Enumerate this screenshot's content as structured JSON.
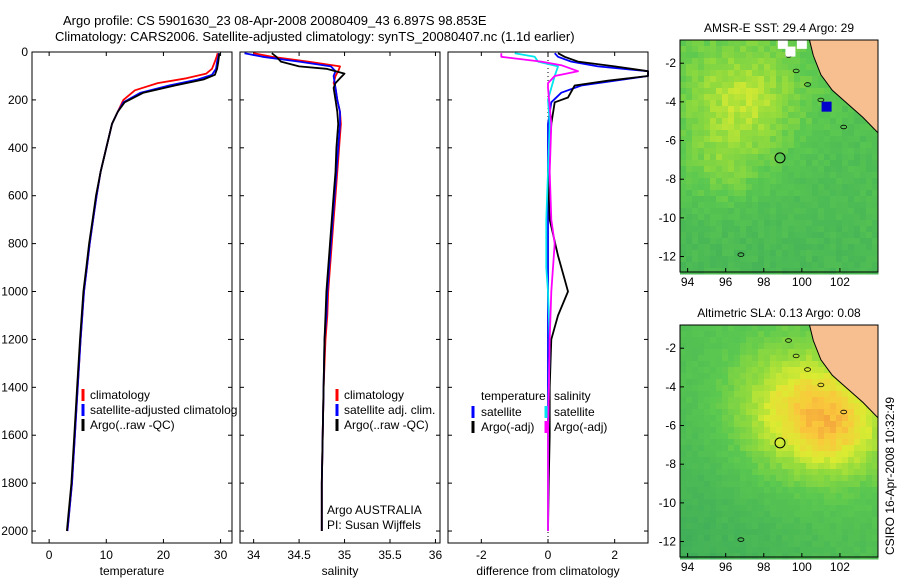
{
  "title": {
    "line1": "Argo profile: CS 5901630_23 08-Apr-2008 20080409_43 6.897S 98.853E",
    "line2": "Climatology: CARS2006. Satellite-adjusted climatology: synTS_20080407.nc (1.1d earlier)"
  },
  "colors": {
    "clim": "#ff0000",
    "sat": "#0000ff",
    "argo": "#000000",
    "cyan": "#00e5ee",
    "magenta": "#ff00ff",
    "land": "#f7bf8f"
  },
  "footer_stamp": "CSIRO 16-Apr-2008 10:32:49",
  "chart_data": [
    {
      "type": "line",
      "xlabel": "temperature",
      "ylabel": "",
      "xlim": [
        -3,
        32
      ],
      "ylim": [
        2050,
        0
      ],
      "y_reversed": true,
      "xticks": [
        0,
        10,
        20,
        30
      ],
      "yticks": [
        0,
        200,
        400,
        600,
        800,
        1000,
        1200,
        1400,
        1600,
        1800,
        2000
      ],
      "legend": [
        "climatology",
        "satellite-adjusted climatolog",
        "Argo(..raw -QC)"
      ],
      "legend_position": "lower-right",
      "series": [
        {
          "name": "climatology",
          "color": "clim",
          "points": [
            [
              29.5,
              5
            ],
            [
              29.3,
              20
            ],
            [
              29,
              40
            ],
            [
              28.5,
              70
            ],
            [
              27.5,
              90
            ],
            [
              24,
              110
            ],
            [
              19,
              130
            ],
            [
              15,
              160
            ],
            [
              13,
              200
            ],
            [
              12,
              250
            ],
            [
              11,
              300
            ],
            [
              10,
              400
            ],
            [
              9,
              500
            ],
            [
              8.3,
              600
            ],
            [
              7.7,
              700
            ],
            [
              7.1,
              800
            ],
            [
              6.6,
              900
            ],
            [
              6.1,
              1000
            ],
            [
              5.8,
              1100
            ],
            [
              5.5,
              1200
            ],
            [
              5,
              1400
            ],
            [
              4.5,
              1600
            ],
            [
              4,
              1800
            ],
            [
              3.4,
              1950
            ],
            [
              3.2,
              2000
            ]
          ]
        },
        {
          "name": "satellite-adjusted climatolog",
          "color": "sat",
          "points": [
            [
              29.7,
              5
            ],
            [
              29.6,
              20
            ],
            [
              29.4,
              40
            ],
            [
              29.2,
              70
            ],
            [
              28.5,
              95
            ],
            [
              26,
              115
            ],
            [
              21,
              140
            ],
            [
              16,
              170
            ],
            [
              13,
              210
            ],
            [
              12,
              250
            ],
            [
              11,
              300
            ],
            [
              10,
              400
            ],
            [
              9,
              500
            ],
            [
              8.3,
              600
            ],
            [
              7.7,
              700
            ],
            [
              7.1,
              800
            ],
            [
              6.6,
              900
            ],
            [
              6.1,
              1000
            ],
            [
              5.8,
              1100
            ],
            [
              5.5,
              1200
            ],
            [
              5,
              1400
            ],
            [
              4.5,
              1600
            ],
            [
              4,
              1800
            ],
            [
              3.4,
              1950
            ],
            [
              3.2,
              2000
            ]
          ]
        },
        {
          "name": "Argo(..raw -QC)",
          "color": "argo",
          "points": [
            [
              29.8,
              5
            ],
            [
              29.7,
              20
            ],
            [
              29.6,
              40
            ],
            [
              29.4,
              70
            ],
            [
              29,
              95
            ],
            [
              27,
              115
            ],
            [
              22,
              140
            ],
            [
              16.5,
              170
            ],
            [
              13.2,
              210
            ],
            [
              12,
              250
            ],
            [
              11,
              300
            ],
            [
              10,
              400
            ],
            [
              9,
              500
            ],
            [
              8.2,
              600
            ],
            [
              7.6,
              700
            ],
            [
              7,
              800
            ],
            [
              6.5,
              900
            ],
            [
              6,
              1000
            ],
            [
              5.7,
              1100
            ],
            [
              5.4,
              1200
            ],
            [
              4.9,
              1400
            ],
            [
              4.4,
              1600
            ],
            [
              3.9,
              1800
            ],
            [
              3.3,
              1950
            ],
            [
              3.1,
              2000
            ]
          ]
        }
      ]
    },
    {
      "type": "line",
      "xlabel": "salinity",
      "ylabel": "",
      "xlim": [
        33.85,
        36.05
      ],
      "ylim": [
        2050,
        0
      ],
      "y_reversed": true,
      "xticks": [
        34,
        34.5,
        35,
        35.5,
        36
      ],
      "legend": [
        "climatology",
        "satellite adj. clim.",
        "Argo(..raw -QC)"
      ],
      "legend_position": "lower-right",
      "annotations": [
        "Argo AUSTRALIA",
        "PI: Susan Wijffels"
      ],
      "series": [
        {
          "name": "climatology",
          "color": "clim",
          "points": [
            [
              34.0,
              5
            ],
            [
              34.2,
              20
            ],
            [
              34.6,
              40
            ],
            [
              34.95,
              60
            ],
            [
              34.93,
              80
            ],
            [
              34.9,
              100
            ],
            [
              34.88,
              130
            ],
            [
              34.9,
              150
            ],
            [
              34.92,
              200
            ],
            [
              34.95,
              250
            ],
            [
              34.96,
              300
            ],
            [
              34.94,
              400
            ],
            [
              34.92,
              500
            ],
            [
              34.9,
              600
            ],
            [
              34.88,
              700
            ],
            [
              34.86,
              800
            ],
            [
              34.84,
              900
            ],
            [
              34.82,
              1000
            ],
            [
              34.81,
              1100
            ],
            [
              34.79,
              1200
            ],
            [
              34.77,
              1400
            ],
            [
              34.76,
              1600
            ],
            [
              34.75,
              1800
            ],
            [
              34.75,
              2000
            ]
          ]
        },
        {
          "name": "satellite adj. clim.",
          "color": "sat",
          "points": [
            [
              33.9,
              5
            ],
            [
              34.1,
              20
            ],
            [
              34.5,
              40
            ],
            [
              34.85,
              60
            ],
            [
              34.9,
              80
            ],
            [
              34.88,
              100
            ],
            [
              34.9,
              150
            ],
            [
              34.92,
              200
            ],
            [
              34.95,
              250
            ],
            [
              34.95,
              300
            ],
            [
              34.93,
              400
            ],
            [
              34.91,
              500
            ],
            [
              34.89,
              600
            ],
            [
              34.87,
              700
            ],
            [
              34.85,
              800
            ],
            [
              34.83,
              900
            ],
            [
              34.81,
              1000
            ],
            [
              34.8,
              1100
            ],
            [
              34.78,
              1200
            ],
            [
              34.77,
              1400
            ],
            [
              34.76,
              1600
            ],
            [
              34.75,
              1800
            ],
            [
              34.75,
              2000
            ]
          ]
        },
        {
          "name": "Argo(..raw -QC)",
          "color": "argo",
          "points": [
            [
              34.2,
              5
            ],
            [
              34.25,
              20
            ],
            [
              34.3,
              40
            ],
            [
              34.5,
              60
            ],
            [
              34.8,
              70
            ],
            [
              35.0,
              90
            ],
            [
              34.95,
              110
            ],
            [
              34.9,
              130
            ],
            [
              34.88,
              150
            ],
            [
              34.9,
              200
            ],
            [
              34.92,
              250
            ],
            [
              34.93,
              300
            ],
            [
              34.91,
              400
            ],
            [
              34.9,
              500
            ],
            [
              34.88,
              600
            ],
            [
              34.86,
              700
            ],
            [
              34.84,
              800
            ],
            [
              34.82,
              900
            ],
            [
              34.8,
              1000
            ],
            [
              34.79,
              1100
            ],
            [
              34.78,
              1200
            ],
            [
              34.77,
              1400
            ],
            [
              34.76,
              1600
            ],
            [
              34.75,
              1800
            ],
            [
              34.75,
              2000
            ]
          ]
        }
      ]
    },
    {
      "type": "line",
      "xlabel": "difference from climatology",
      "ylabel": "",
      "xlim": [
        -3.0,
        3.0
      ],
      "ylim": [
        2050,
        0
      ],
      "y_reversed": true,
      "xticks": [
        -2,
        0,
        2
      ],
      "legend_left_title": "temperature",
      "legend_right_title": "salinity",
      "legend": [
        "satellite",
        "Argo(-adj)",
        "satellite",
        "Argo(-adj)"
      ],
      "legend_position": "lower",
      "series": [
        {
          "name": "satellite",
          "group": "temperature",
          "color": "sat",
          "points": [
            [
              0.2,
              5
            ],
            [
              0.3,
              20
            ],
            [
              0.7,
              40
            ],
            [
              1.5,
              60
            ],
            [
              3.0,
              80
            ],
            [
              3.0,
              100
            ],
            [
              2.0,
              120
            ],
            [
              1.0,
              140
            ],
            [
              0.4,
              170
            ],
            [
              0.1,
              210
            ],
            [
              0,
              300
            ],
            [
              0,
              600
            ],
            [
              0,
              1000
            ],
            [
              0,
              1500
            ],
            [
              0,
              2000
            ]
          ]
        },
        {
          "name": "Argo(-adj)",
          "group": "temperature",
          "color": "argo",
          "points": [
            [
              0.3,
              5
            ],
            [
              0.5,
              20
            ],
            [
              0.9,
              40
            ],
            [
              2.0,
              60
            ],
            [
              3.0,
              80
            ],
            [
              3.0,
              100
            ],
            [
              1.8,
              120
            ],
            [
              0.8,
              140
            ],
            [
              0.6,
              190
            ],
            [
              0.2,
              210
            ],
            [
              0.1,
              300
            ],
            [
              0,
              500
            ],
            [
              0.05,
              700
            ],
            [
              0.3,
              850
            ],
            [
              0.5,
              950
            ],
            [
              0.6,
              1000
            ],
            [
              0.3,
              1100
            ],
            [
              0.1,
              1200
            ],
            [
              0.05,
              1400
            ],
            [
              0.05,
              1600
            ],
            [
              0.02,
              1800
            ],
            [
              0,
              2000
            ]
          ]
        },
        {
          "name": "satellite",
          "group": "salinity",
          "color": "cyan",
          "points": [
            [
              -1.0,
              5
            ],
            [
              -0.4,
              20
            ],
            [
              -0.3,
              40
            ],
            [
              0.3,
              60
            ],
            [
              0.2,
              100
            ],
            [
              0.1,
              150
            ],
            [
              0,
              200
            ],
            [
              0.05,
              300
            ],
            [
              0,
              500
            ],
            [
              -0.05,
              700
            ],
            [
              -0.05,
              900
            ],
            [
              0,
              1000
            ],
            [
              0.05,
              1200
            ],
            [
              0,
              1600
            ],
            [
              0,
              2000
            ]
          ]
        },
        {
          "name": "Argo(-adj)",
          "group": "salinity",
          "color": "magenta",
          "points": [
            [
              -1.4,
              5
            ],
            [
              -1.4,
              20
            ],
            [
              -0.2,
              40
            ],
            [
              0.4,
              55
            ],
            [
              0.9,
              80
            ],
            [
              0.2,
              100
            ],
            [
              0,
              130
            ],
            [
              0,
              150
            ],
            [
              0.1,
              300
            ],
            [
              0.05,
              500
            ],
            [
              0.1,
              700
            ],
            [
              0.2,
              800
            ],
            [
              0.15,
              900
            ],
            [
              0.1,
              1000
            ],
            [
              0.05,
              1200
            ],
            [
              0,
              1600
            ],
            [
              0,
              2000
            ]
          ]
        }
      ]
    },
    {
      "type": "heatmap",
      "title": "AMSR-E SST: 29.4 Argo: 29",
      "xlim": [
        93.6,
        104
      ],
      "ylim": [
        -12.8,
        -0.8
      ],
      "xticks": [
        94,
        96,
        98,
        100,
        102
      ],
      "yticks": [
        -2,
        -4,
        -6,
        -8,
        -10,
        -12
      ],
      "marker": {
        "lon": 98.853,
        "lat": -6.897
      }
    },
    {
      "type": "heatmap",
      "title": "Altimetric SLA: 0.13 Argo: 0.08",
      "xlim": [
        93.6,
        104
      ],
      "ylim": [
        -12.8,
        -0.8
      ],
      "xticks": [
        94,
        96,
        98,
        100,
        102
      ],
      "yticks": [
        -2,
        -4,
        -6,
        -8,
        -10,
        -12
      ],
      "marker": {
        "lon": 98.853,
        "lat": -6.897
      }
    }
  ]
}
